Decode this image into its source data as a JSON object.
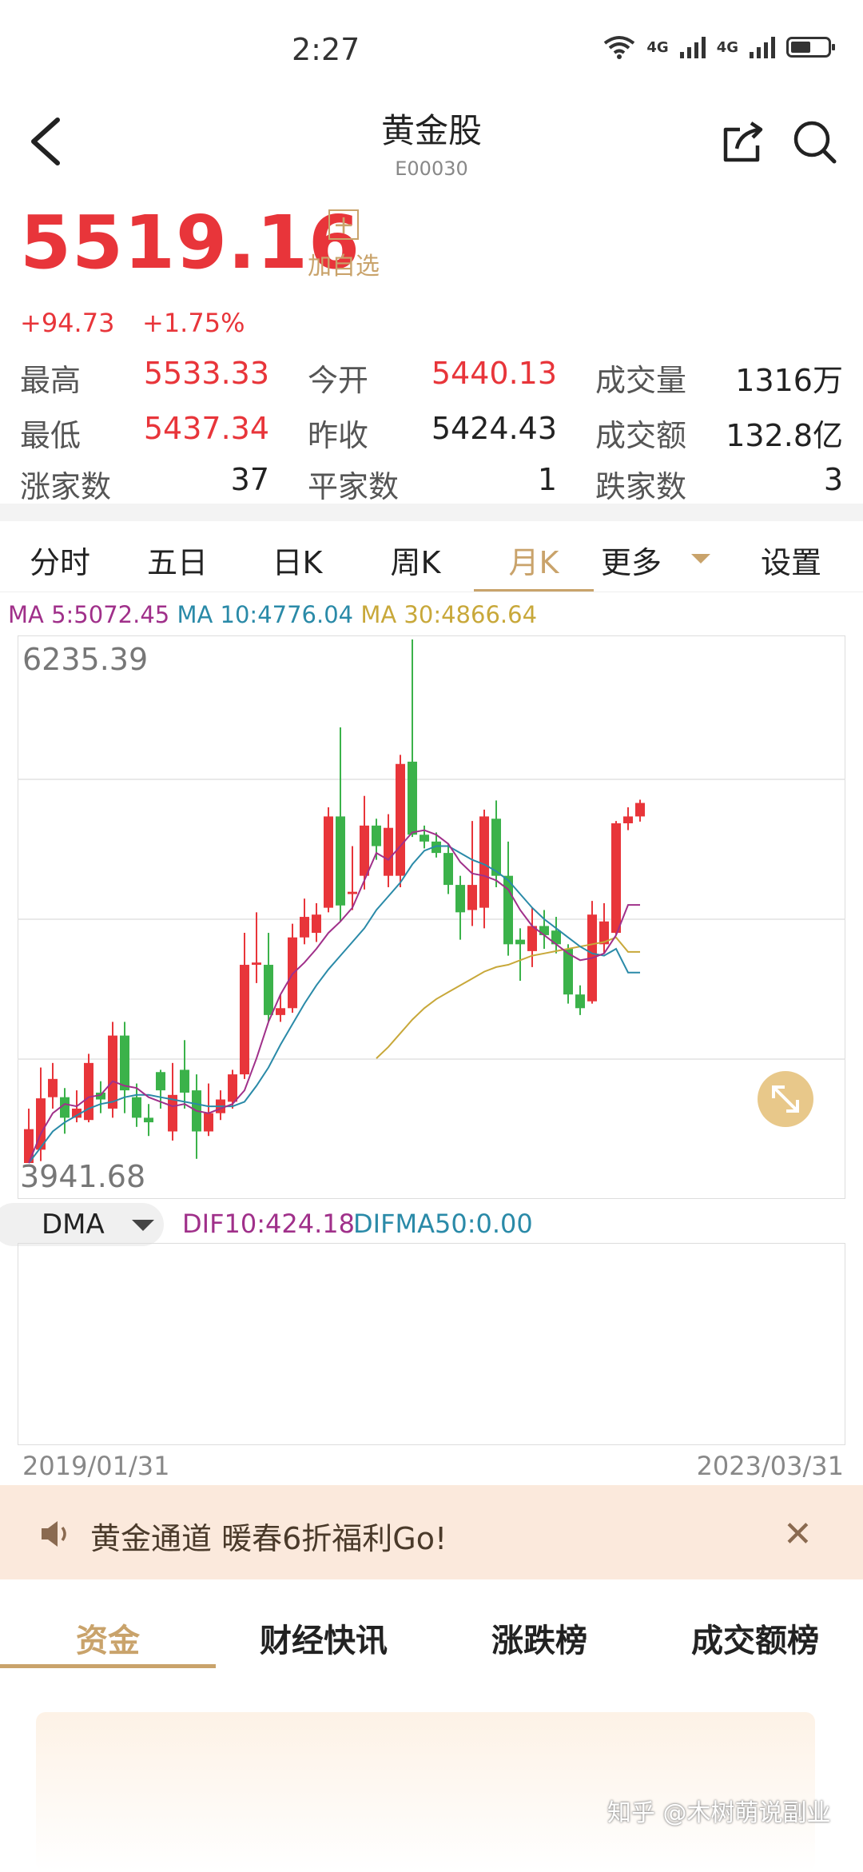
{
  "status_bar": {
    "time": "2:27",
    "signal1": "4G",
    "signal2": "4G"
  },
  "header": {
    "title": "黄金股",
    "code": "E00030",
    "back_icon": "back-arrow-icon",
    "share_icon": "share-icon",
    "search_icon": "search-icon"
  },
  "quote": {
    "price": "5519.16",
    "change": "+94.73",
    "change_pct": "+1.75%",
    "watch_plus": "+",
    "watch_label": "加自选",
    "up_color": "#e8353a",
    "down_color": "#3bb24a"
  },
  "stats": [
    [
      {
        "label": "最高",
        "value": "5533.33",
        "tone": "red"
      },
      {
        "label": "今开",
        "value": "5440.13",
        "tone": "red"
      },
      {
        "label": "成交量",
        "value": "1316万",
        "tone": "dark"
      }
    ],
    [
      {
        "label": "最低",
        "value": "5437.34",
        "tone": "red"
      },
      {
        "label": "昨收",
        "value": "5424.43",
        "tone": "dark"
      },
      {
        "label": "成交额",
        "value": "132.8亿",
        "tone": "dark"
      }
    ],
    [
      {
        "label": "涨家数",
        "value": "37",
        "tone": "dark"
      },
      {
        "label": "平家数",
        "value": "1",
        "tone": "dark"
      },
      {
        "label": "跌家数",
        "value": "3",
        "tone": "dark"
      }
    ]
  ],
  "period_tabs": [
    "分时",
    "五日",
    "日K",
    "周K",
    "月K",
    "更多",
    "设置"
  ],
  "active_period": "月K",
  "ma_legend": {
    "ma5": "MA 5:5072.45",
    "ma10": "MA 10:4776.04",
    "ma30": "MA 30:4866.64",
    "ma5_color": "#a0308a",
    "ma10_color": "#2a8aa8",
    "ma30_color": "#c8a83a"
  },
  "chart_data": {
    "type": "candlestick",
    "ylim": [
      3941.68,
      6235.39
    ],
    "ymax_label": "6235.39",
    "ymin_label": "3941.68",
    "x_start_label": "2019/01/31",
    "x_end_label": "2023/03/31",
    "candles": [
      {
        "o": 3941.68,
        "c": 4090,
        "h": 4180,
        "l": 3941.68
      },
      {
        "o": 4000,
        "c": 4225,
        "h": 4360,
        "l": 3950
      },
      {
        "o": 4230,
        "c": 4310,
        "h": 4380,
        "l": 4180
      },
      {
        "o": 4230,
        "c": 4140,
        "h": 4270,
        "l": 4070
      },
      {
        "o": 4140,
        "c": 4180,
        "h": 4260,
        "l": 4120
      },
      {
        "o": 4130,
        "c": 4380,
        "h": 4420,
        "l": 4120
      },
      {
        "o": 4250,
        "c": 4220,
        "h": 4300,
        "l": 4160
      },
      {
        "o": 4180,
        "c": 4500,
        "h": 4560,
        "l": 4140
      },
      {
        "o": 4500,
        "c": 4260,
        "h": 4560,
        "l": 4160
      },
      {
        "o": 4230,
        "c": 4140,
        "h": 4290,
        "l": 4100
      },
      {
        "o": 4140,
        "c": 4120,
        "h": 4200,
        "l": 4060
      },
      {
        "o": 4340,
        "c": 4260,
        "h": 4350,
        "l": 4180
      },
      {
        "o": 4080,
        "c": 4240,
        "h": 4380,
        "l": 4040
      },
      {
        "o": 4350,
        "c": 4250,
        "h": 4480,
        "l": 4180
      },
      {
        "o": 4260,
        "c": 4080,
        "h": 4330,
        "l": 3960
      },
      {
        "o": 4080,
        "c": 4160,
        "h": 4290,
        "l": 4060
      },
      {
        "o": 4160,
        "c": 4220,
        "h": 4260,
        "l": 4130
      },
      {
        "o": 4210,
        "c": 4330,
        "h": 4350,
        "l": 4180
      },
      {
        "o": 4330,
        "c": 4810,
        "h": 4950,
        "l": 4310
      },
      {
        "o": 4810,
        "c": 4820,
        "h": 5040,
        "l": 4730
      },
      {
        "o": 4810,
        "c": 4590,
        "h": 4950,
        "l": 4560
      },
      {
        "o": 4590,
        "c": 4620,
        "h": 4680,
        "l": 4560
      },
      {
        "o": 4620,
        "c": 4930,
        "h": 4990,
        "l": 4600
      },
      {
        "o": 4930,
        "c": 5020,
        "h": 5100,
        "l": 4900
      },
      {
        "o": 4950,
        "c": 5030,
        "h": 5080,
        "l": 4910
      },
      {
        "o": 5060,
        "c": 5460,
        "h": 5500,
        "l": 5040
      },
      {
        "o": 5460,
        "c": 5070,
        "h": 5850,
        "l": 5000
      },
      {
        "o": 5120,
        "c": 5130,
        "h": 5330,
        "l": 5050
      },
      {
        "o": 5200,
        "c": 5420,
        "h": 5550,
        "l": 5140
      },
      {
        "o": 5420,
        "c": 5330,
        "h": 5450,
        "l": 5270
      },
      {
        "o": 5200,
        "c": 5410,
        "h": 5470,
        "l": 5150
      },
      {
        "o": 5200,
        "c": 5690,
        "h": 5730,
        "l": 5150
      },
      {
        "o": 5700,
        "c": 5380,
        "h": 6235.39,
        "l": 5370
      },
      {
        "o": 5380,
        "c": 5350,
        "h": 5420,
        "l": 5320
      },
      {
        "o": 5350,
        "c": 5300,
        "h": 5390,
        "l": 5280
      },
      {
        "o": 5300,
        "c": 5160,
        "h": 5340,
        "l": 5120
      },
      {
        "o": 5160,
        "c": 5040,
        "h": 5200,
        "l": 4920
      },
      {
        "o": 5050,
        "c": 5160,
        "h": 5440,
        "l": 4980
      },
      {
        "o": 5060,
        "c": 5460,
        "h": 5490,
        "l": 4970
      },
      {
        "o": 5450,
        "c": 5200,
        "h": 5530,
        "l": 5150
      },
      {
        "o": 5200,
        "c": 4900,
        "h": 5350,
        "l": 4850
      },
      {
        "o": 4920,
        "c": 4900,
        "h": 4970,
        "l": 4740
      },
      {
        "o": 4870,
        "c": 4980,
        "h": 5060,
        "l": 4800
      },
      {
        "o": 4980,
        "c": 4940,
        "h": 5050,
        "l": 4880
      },
      {
        "o": 4960,
        "c": 4900,
        "h": 5020,
        "l": 4860
      },
      {
        "o": 4880,
        "c": 4680,
        "h": 4900,
        "l": 4640
      },
      {
        "o": 4680,
        "c": 4620,
        "h": 4720,
        "l": 4590
      },
      {
        "o": 4650,
        "c": 5030,
        "h": 5090,
        "l": 4640
      },
      {
        "o": 4900,
        "c": 5000,
        "h": 5080,
        "l": 4860
      },
      {
        "o": 4950,
        "c": 5430,
        "h": 5440,
        "l": 4940
      },
      {
        "o": 5430,
        "c": 5460,
        "h": 5500,
        "l": 5400
      },
      {
        "o": 5460,
        "c": 5519.16,
        "h": 5533.33,
        "l": 5437.34
      }
    ],
    "ma5": [
      3941.68,
      4070,
      4160,
      4200,
      4190,
      4230,
      4240,
      4300,
      4280,
      4270,
      4230,
      4210,
      4190,
      4200,
      4170,
      4160,
      4180,
      4200,
      4260,
      4400,
      4560,
      4680,
      4770,
      4820,
      4880,
      4950,
      5000,
      5060,
      5180,
      5300,
      5270,
      5330,
      5390,
      5400,
      5380,
      5340,
      5260,
      5210,
      5200,
      5180,
      5140,
      5050,
      4980,
      4940,
      4900,
      4860,
      4830,
      4840,
      4860,
      4940,
      5072.45,
      5072.45
    ],
    "ma10": [
      3941.68,
      4010,
      4080,
      4120,
      4150,
      4180,
      4200,
      4210,
      4230,
      4240,
      4240,
      4230,
      4220,
      4210,
      4200,
      4190,
      4190,
      4190,
      4210,
      4280,
      4360,
      4460,
      4550,
      4640,
      4720,
      4790,
      4850,
      4910,
      4970,
      5050,
      5110,
      5170,
      5250,
      5310,
      5330,
      5330,
      5300,
      5270,
      5250,
      5220,
      5180,
      5120,
      5060,
      5010,
      4970,
      4930,
      4890,
      4860,
      4850,
      4880,
      4776.04,
      4776.04
    ],
    "ma30": [
      null,
      null,
      null,
      null,
      null,
      null,
      null,
      null,
      null,
      null,
      null,
      null,
      null,
      null,
      null,
      null,
      null,
      null,
      null,
      null,
      null,
      null,
      null,
      null,
      null,
      null,
      null,
      null,
      null,
      4400,
      4450,
      4510,
      4570,
      4620,
      4660,
      4690,
      4720,
      4750,
      4780,
      4800,
      4810,
      4830,
      4850,
      4860,
      4870,
      4880,
      4890,
      4900,
      4910,
      4930,
      4866.64,
      4866.64
    ]
  },
  "indicator": {
    "dropdown_label": "DMA",
    "dif": "DIF10:424.18",
    "difma": "DIFMA50:0.00"
  },
  "banner": {
    "text": "黄金通道 暖春6折福利Go!",
    "close": "✕"
  },
  "bottom_tabs": [
    "资金",
    "财经快讯",
    "涨跌榜",
    "成交额榜"
  ],
  "watermark": "知乎 @木树萌说副业"
}
